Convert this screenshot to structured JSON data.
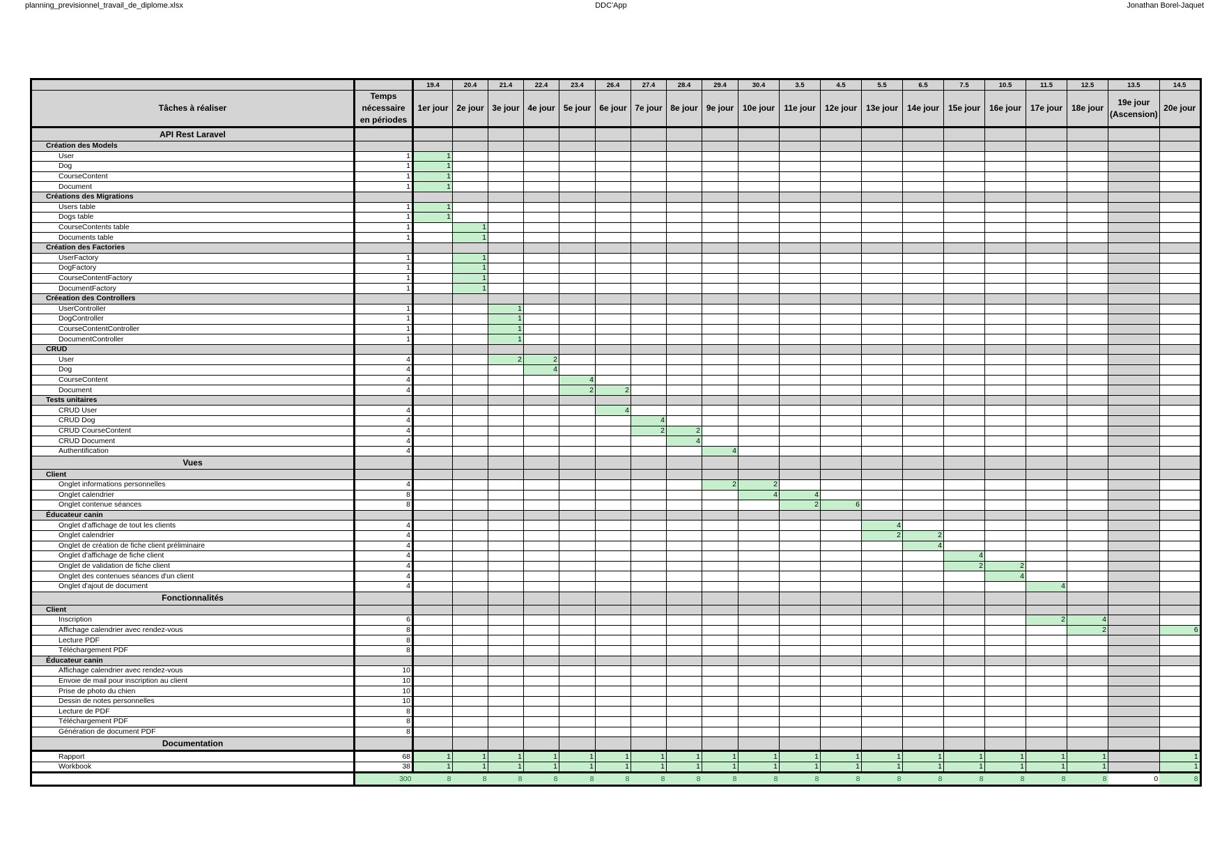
{
  "header": {
    "filename": "planning_previsionnel_travail_de_diplome.xlsx",
    "app": "DDC'App",
    "author": "Jonathan Borel-Jaquet"
  },
  "colors": {
    "planned": "#c6efce",
    "header_gray": "#d4d4d4",
    "total_text": "#1a6b2e"
  },
  "table": {
    "task_header": "Tâches à réaliser",
    "time_header": "Temps nécessaire en périodes",
    "dates": [
      "19.4",
      "20.4",
      "21.4",
      "22.4",
      "23.4",
      "26.4",
      "27.4",
      "28.4",
      "29.4",
      "30.4",
      "3.5",
      "4.5",
      "5.5",
      "6.5",
      "7.5",
      "10.5",
      "11.5",
      "12.5",
      "13.5",
      "14.5"
    ],
    "days": [
      "1er jour",
      "2e jour",
      "3e jour",
      "4e jour",
      "5e jour",
      "6e jour",
      "7e jour",
      "8e jour",
      "9e jour",
      "10e jour",
      "11e jour",
      "12e jour",
      "13e jour",
      "14e jour",
      "15e jour",
      "16e jour",
      "17e jour",
      "18e jour",
      "19e jour (Ascension)",
      "20e jour"
    ],
    "holiday_index": 18,
    "rows": [
      {
        "kind": "section",
        "label": "API Rest Laravel"
      },
      {
        "kind": "group",
        "label": "Création des Models"
      },
      {
        "kind": "item",
        "label": "User",
        "total": "1",
        "cells": {
          "0": "1"
        }
      },
      {
        "kind": "item",
        "label": "Dog",
        "total": "1",
        "cells": {
          "0": "1"
        }
      },
      {
        "kind": "item",
        "label": "CourseContent",
        "total": "1",
        "cells": {
          "0": "1"
        }
      },
      {
        "kind": "item",
        "label": "Document",
        "total": "1",
        "cells": {
          "0": "1"
        }
      },
      {
        "kind": "group",
        "label": "Créations des Migrations"
      },
      {
        "kind": "item",
        "label": "Users table",
        "total": "1",
        "cells": {
          "0": "1"
        }
      },
      {
        "kind": "item",
        "label": "Dogs table",
        "total": "1",
        "cells": {
          "0": "1"
        }
      },
      {
        "kind": "item",
        "label": "CourseContents table",
        "total": "1",
        "cells": {
          "1": "1"
        }
      },
      {
        "kind": "item",
        "label": "Documents table",
        "total": "1",
        "cells": {
          "1": "1"
        }
      },
      {
        "kind": "group",
        "label": "Création des Factories"
      },
      {
        "kind": "item",
        "label": "UserFactory",
        "total": "1",
        "cells": {
          "1": "1"
        }
      },
      {
        "kind": "item",
        "label": "DogFactory",
        "total": "1",
        "cells": {
          "1": "1"
        }
      },
      {
        "kind": "item",
        "label": "CourseContentFactory",
        "total": "1",
        "cells": {
          "1": "1"
        }
      },
      {
        "kind": "item",
        "label": "DocumentFactory",
        "total": "1",
        "cells": {
          "1": "1"
        }
      },
      {
        "kind": "group",
        "label": "Créeation des Controllers"
      },
      {
        "kind": "item",
        "label": "UserController",
        "total": "1",
        "cells": {
          "2": "1"
        }
      },
      {
        "kind": "item",
        "label": "DogController",
        "total": "1",
        "cells": {
          "2": "1"
        }
      },
      {
        "kind": "item",
        "label": "CourseContentController",
        "total": "1",
        "cells": {
          "2": "1"
        }
      },
      {
        "kind": "item",
        "label": "DocumentController",
        "total": "1",
        "cells": {
          "2": "1"
        }
      },
      {
        "kind": "group",
        "label": "CRUD"
      },
      {
        "kind": "item",
        "label": "User",
        "total": "4",
        "cells": {
          "2": "2",
          "3": "2"
        }
      },
      {
        "kind": "item",
        "label": "Dog",
        "total": "4",
        "cells": {
          "3": "4"
        }
      },
      {
        "kind": "item",
        "label": "CourseContent",
        "total": "4",
        "cells": {
          "4": "4"
        }
      },
      {
        "kind": "item",
        "label": "Document",
        "total": "4",
        "cells": {
          "4": "2",
          "5": "2"
        }
      },
      {
        "kind": "group",
        "label": "Tests unitaires"
      },
      {
        "kind": "item",
        "label": "CRUD User",
        "total": "4",
        "cells": {
          "5": "4"
        }
      },
      {
        "kind": "item",
        "label": "CRUD Dog",
        "total": "4",
        "cells": {
          "6": "4"
        }
      },
      {
        "kind": "item",
        "label": "CRUD CourseContent",
        "total": "4",
        "cells": {
          "6": "2",
          "7": "2"
        }
      },
      {
        "kind": "item",
        "label": "CRUD Document",
        "total": "4",
        "cells": {
          "7": "4"
        }
      },
      {
        "kind": "item",
        "label": "Authentification",
        "total": "4",
        "cells": {
          "8": "4"
        }
      },
      {
        "kind": "section",
        "label": "Vues"
      },
      {
        "kind": "group",
        "label": "Client"
      },
      {
        "kind": "item",
        "label": "Onglet informations personnelles",
        "total": "4",
        "cells": {
          "8": "2",
          "9": "2"
        }
      },
      {
        "kind": "item",
        "label": "Onglet calendrier",
        "total": "8",
        "cells": {
          "9": "4",
          "10": "4"
        }
      },
      {
        "kind": "item",
        "label": "Onglet contenue séances",
        "total": "8",
        "cells": {
          "10": "2",
          "11": "6"
        }
      },
      {
        "kind": "group",
        "label": "Éducateur canin"
      },
      {
        "kind": "item",
        "label": "Onglet d'affichage de tout les clients",
        "total": "4",
        "cells": {
          "12": "4"
        }
      },
      {
        "kind": "item",
        "label": "Onglet calendrier",
        "total": "4",
        "cells": {
          "12": "2",
          "13": "2"
        }
      },
      {
        "kind": "item",
        "label": "Onglet de création de fiche client préliminaire",
        "total": "4",
        "cells": {
          "13": "4"
        }
      },
      {
        "kind": "item",
        "label": "Onglet d'affichage de fiche client",
        "total": "4",
        "cells": {
          "14": "4"
        }
      },
      {
        "kind": "item",
        "label": "Onglet de validation de fiche client",
        "total": "4",
        "cells": {
          "14": "2",
          "15": "2"
        }
      },
      {
        "kind": "item",
        "label": "Onglet des contenues séances d'un client",
        "total": "4",
        "cells": {
          "15": "4"
        }
      },
      {
        "kind": "item",
        "label": "Onglet d'ajout de document",
        "total": "4",
        "cells": {
          "16": "4"
        }
      },
      {
        "kind": "section",
        "label": "Fonctionnalités"
      },
      {
        "kind": "group",
        "label": "Client"
      },
      {
        "kind": "item",
        "label": "Inscription",
        "total": "6",
        "cells": {
          "16": "2",
          "17": "4"
        }
      },
      {
        "kind": "item",
        "label": "Affichage calendrier avec rendez-vous",
        "total": "8",
        "cells": {
          "17": "2",
          "19": "6"
        }
      },
      {
        "kind": "item",
        "label": "Lecture PDF",
        "total": "8",
        "cells": {}
      },
      {
        "kind": "item",
        "label": "Téléchargement PDF",
        "total": "8",
        "cells": {}
      },
      {
        "kind": "group",
        "label": "Éducateur canin"
      },
      {
        "kind": "item",
        "label": "Affichage calendrier avec rendez-vous",
        "total": "10",
        "cells": {}
      },
      {
        "kind": "item",
        "label": "Envoie de mail pour inscription au client",
        "total": "10",
        "cells": {}
      },
      {
        "kind": "item",
        "label": "Prise de photo du chien",
        "total": "10",
        "cells": {}
      },
      {
        "kind": "item",
        "label": "Dessin de notes personnelles",
        "total": "10",
        "cells": {}
      },
      {
        "kind": "item",
        "label": "Lecture de PDF",
        "total": "8",
        "cells": {}
      },
      {
        "kind": "item",
        "label": "Téléchargement PDF",
        "total": "8",
        "cells": {}
      },
      {
        "kind": "item",
        "label": "Génération de document PDF",
        "total": "8",
        "cells": {}
      },
      {
        "kind": "section",
        "label": "Documentation"
      },
      {
        "kind": "item",
        "label": "Rapport",
        "total": "68",
        "doc": true,
        "cells": {
          "0": "1",
          "1": "1",
          "2": "1",
          "3": "1",
          "4": "1",
          "5": "1",
          "6": "1",
          "7": "1",
          "8": "1",
          "9": "1",
          "10": "1",
          "11": "1",
          "12": "1",
          "13": "1",
          "14": "1",
          "15": "1",
          "16": "1",
          "17": "1",
          "19": "1"
        }
      },
      {
        "kind": "item",
        "label": "Workbook",
        "total": "38",
        "cells": {
          "0": "1",
          "1": "1",
          "2": "1",
          "3": "1",
          "4": "1",
          "5": "1",
          "6": "1",
          "7": "1",
          "8": "1",
          "9": "1",
          "10": "1",
          "11": "1",
          "12": "1",
          "13": "1",
          "14": "1",
          "15": "1",
          "16": "1",
          "17": "1",
          "19": "1"
        }
      }
    ],
    "totals": {
      "grand_total": "300",
      "per_day": [
        "8",
        "8",
        "8",
        "8",
        "8",
        "8",
        "8",
        "8",
        "8",
        "8",
        "8",
        "8",
        "8",
        "8",
        "8",
        "8",
        "8",
        "8",
        "0",
        "8"
      ]
    }
  }
}
